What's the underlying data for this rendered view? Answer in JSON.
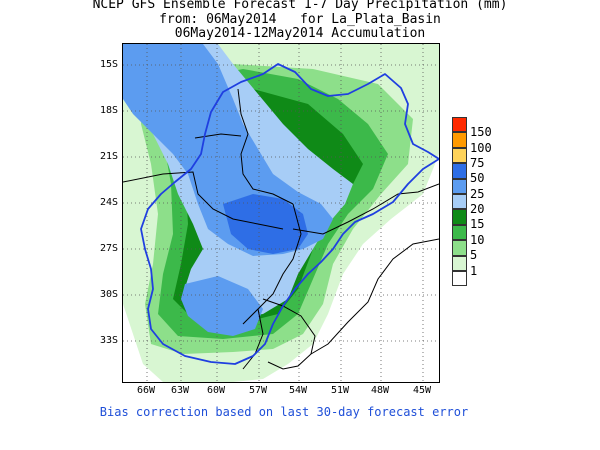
{
  "title": {
    "line1": "NCEP GFS Ensemble Forecast 1-7 Day Precipitation (mm)",
    "line2": "from: 06May2014   for La_Plata_Basin",
    "line3": "06May2014-12May2014 Accumulation"
  },
  "axes": {
    "lat_labels": [
      "15S",
      "18S",
      "21S",
      "24S",
      "27S",
      "30S",
      "33S"
    ],
    "lon_labels": [
      "66W",
      "63W",
      "60W",
      "57W",
      "54W",
      "51W",
      "48W",
      "45W"
    ]
  },
  "legend": {
    "entries": [
      {
        "label": "150",
        "color": "#ff2a00"
      },
      {
        "label": "100",
        "color": "#ff9a00"
      },
      {
        "label": "75",
        "color": "#ffd35a"
      },
      {
        "label": "50",
        "color": "#2e6ee6"
      },
      {
        "label": "25",
        "color": "#5c9cf0"
      },
      {
        "label": "20",
        "color": "#a7cdf6"
      },
      {
        "label": "15",
        "color": "#0f8a17"
      },
      {
        "label": "10",
        "color": "#3cb94a"
      },
      {
        "label": "5",
        "color": "#8ddf8a"
      },
      {
        "label": "1",
        "color": "#d8f6d2"
      }
    ],
    "below_color": "#ffffff"
  },
  "footnote": "Bias correction based on last 30-day forecast error",
  "colors": {
    "basin_outline": "#1f3fe0",
    "borders": "#000000",
    "grid": "#555555"
  }
}
